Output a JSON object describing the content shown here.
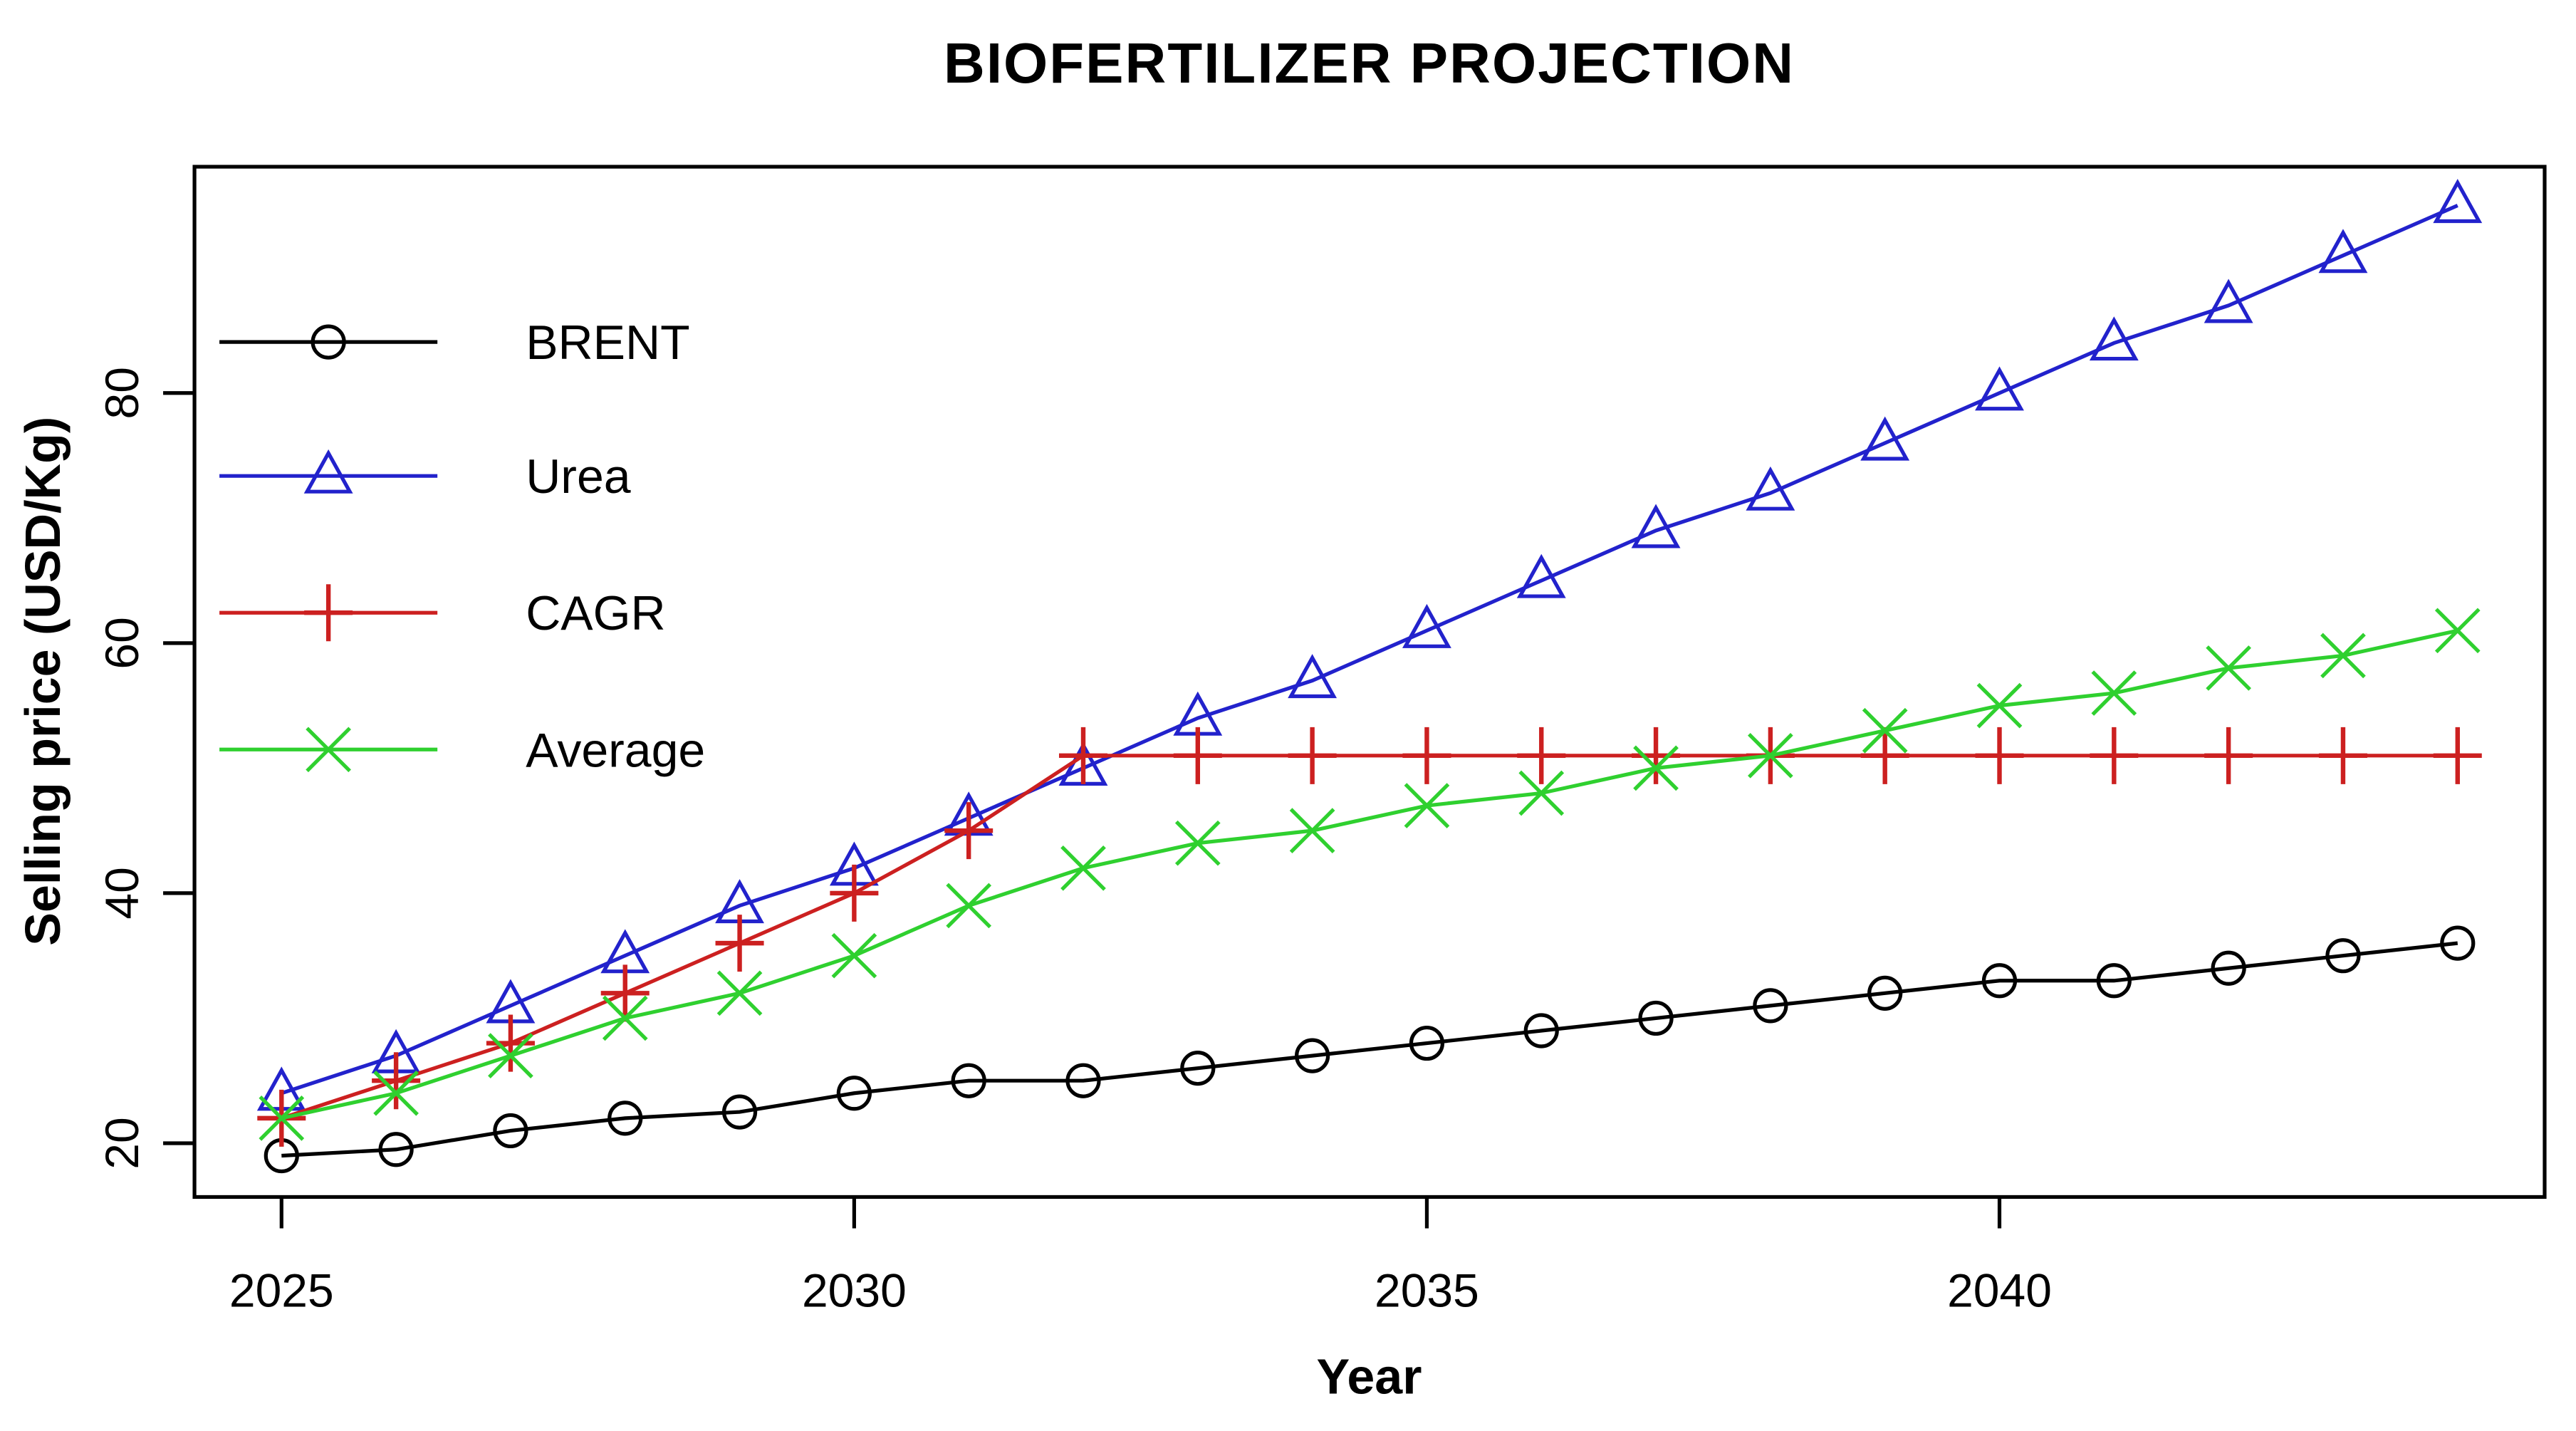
{
  "chart_data": {
    "type": "line",
    "title": "BIOFERTILIZER PROJECTION",
    "xlabel": "Year",
    "ylabel": "Selling price (USD/Kg)",
    "x": [
      2025,
      2026,
      2027,
      2028,
      2029,
      2030,
      2031,
      2032,
      2033,
      2034,
      2035,
      2036,
      2037,
      2038,
      2039,
      2040,
      2041,
      2042,
      2043,
      2044
    ],
    "xlim": [
      2024.24,
      2044.76
    ],
    "ylim": [
      15.7,
      98.1
    ],
    "x_ticks": [
      2025,
      2030,
      2035,
      2040
    ],
    "y_ticks": [
      20,
      40,
      60,
      80
    ],
    "grid": false,
    "legend_position": "top-left-inside",
    "series": [
      {
        "name": "BRENT",
        "color": "#000000",
        "marker": "circle",
        "values": [
          19,
          19.5,
          21,
          22,
          22.5,
          24,
          25,
          25,
          26,
          27,
          28,
          29,
          30,
          31,
          32,
          33,
          33,
          34,
          35,
          36
        ]
      },
      {
        "name": "Urea",
        "color": "#2222cc",
        "marker": "triangle",
        "values": [
          24,
          27,
          31,
          35,
          39,
          42,
          46,
          50,
          54,
          57,
          61,
          65,
          69,
          72,
          76,
          80,
          84,
          87,
          91,
          95
        ]
      },
      {
        "name": "CAGR",
        "color": "#cc2020",
        "marker": "plus",
        "values": [
          22,
          25,
          28,
          32,
          36,
          40,
          45,
          51,
          51,
          51,
          51,
          51,
          51,
          51,
          51,
          51,
          51,
          51,
          51,
          51
        ]
      },
      {
        "name": "Average",
        "color": "#2fd02f",
        "marker": "x",
        "values": [
          22,
          24,
          27,
          30,
          32,
          35,
          39,
          42,
          44,
          45,
          47,
          48,
          50,
          51,
          53,
          55,
          56,
          58,
          59,
          61
        ]
      }
    ]
  }
}
